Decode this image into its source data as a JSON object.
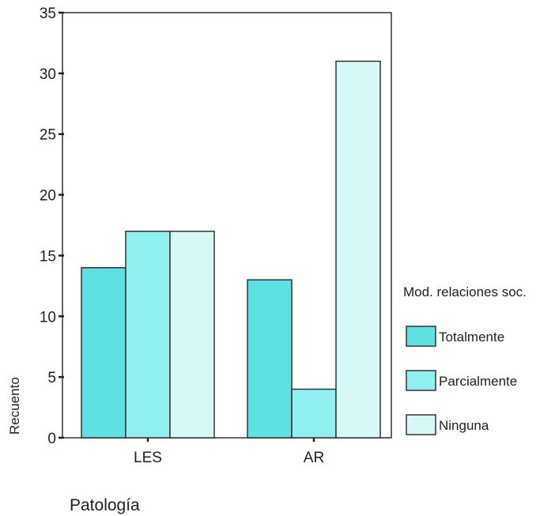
{
  "chart_data": {
    "type": "bar",
    "categories": [
      "LES",
      "AR"
    ],
    "series": [
      {
        "name": "Totalmente",
        "values": [
          14,
          13
        ],
        "color": "#5ee0e2"
      },
      {
        "name": "Parcialmente",
        "values": [
          17,
          4
        ],
        "color": "#8ff0ef"
      },
      {
        "name": "Ninguna",
        "values": [
          17,
          31
        ],
        "color": "#d6f8f7"
      }
    ],
    "xlabel": "Patología",
    "ylabel": "Recuento",
    "ylim": [
      0,
      35
    ],
    "yticks": [
      0,
      5,
      10,
      15,
      20,
      25,
      30,
      35
    ],
    "legend_title": "Mod. relaciones soc.",
    "legend_position": "right",
    "grid": false
  }
}
